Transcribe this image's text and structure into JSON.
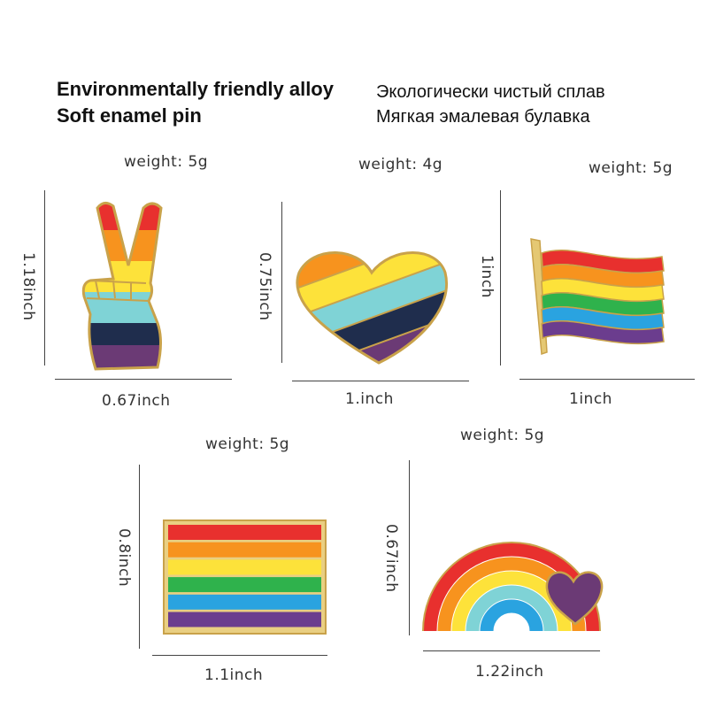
{
  "headings": {
    "english": [
      "Environmentally friendly alloy",
      "Soft enamel pin"
    ],
    "russian": [
      "Экологически чистый сплав",
      "Мягкая эмалевая булавка"
    ]
  },
  "colors": {
    "gold_outline": "#c9a24a",
    "rainbow": [
      "#e8302e",
      "#f7931e",
      "#fde23a",
      "#2fb24c",
      "#2aa3e0",
      "#6b3d8e"
    ],
    "peace_hand": [
      "#e8302e",
      "#f7931e",
      "#fde23a",
      "#7fd3d6",
      "#1f2d4d",
      "#6b3a75"
    ],
    "heart": [
      "#e8302e",
      "#f7931e",
      "#fde23a",
      "#7fd3d6",
      "#1f2d4d",
      "#6b3a75"
    ],
    "arc": [
      "#e8302e",
      "#f7931e",
      "#fde23a",
      "#7fd3d6",
      "#2aa3e0"
    ],
    "arc_heart": "#6b3a75"
  },
  "pins": [
    {
      "name": "peace-hand",
      "weight": "weight: 5g",
      "height": "1.18inch",
      "width": "0.67inch"
    },
    {
      "name": "heart",
      "weight": "weight: 4g",
      "height": "0.75inch",
      "width": "1.inch"
    },
    {
      "name": "waving-flag",
      "weight": "weight: 5g",
      "height": "1inch",
      "width": "1inch"
    },
    {
      "name": "rectangle-flag",
      "weight": "weight: 5g",
      "height": "0.8inch",
      "width": "1.1inch"
    },
    {
      "name": "rainbow-heart",
      "weight": "weight: 5g",
      "height": "0.67inch",
      "width": "1.22inch"
    }
  ]
}
